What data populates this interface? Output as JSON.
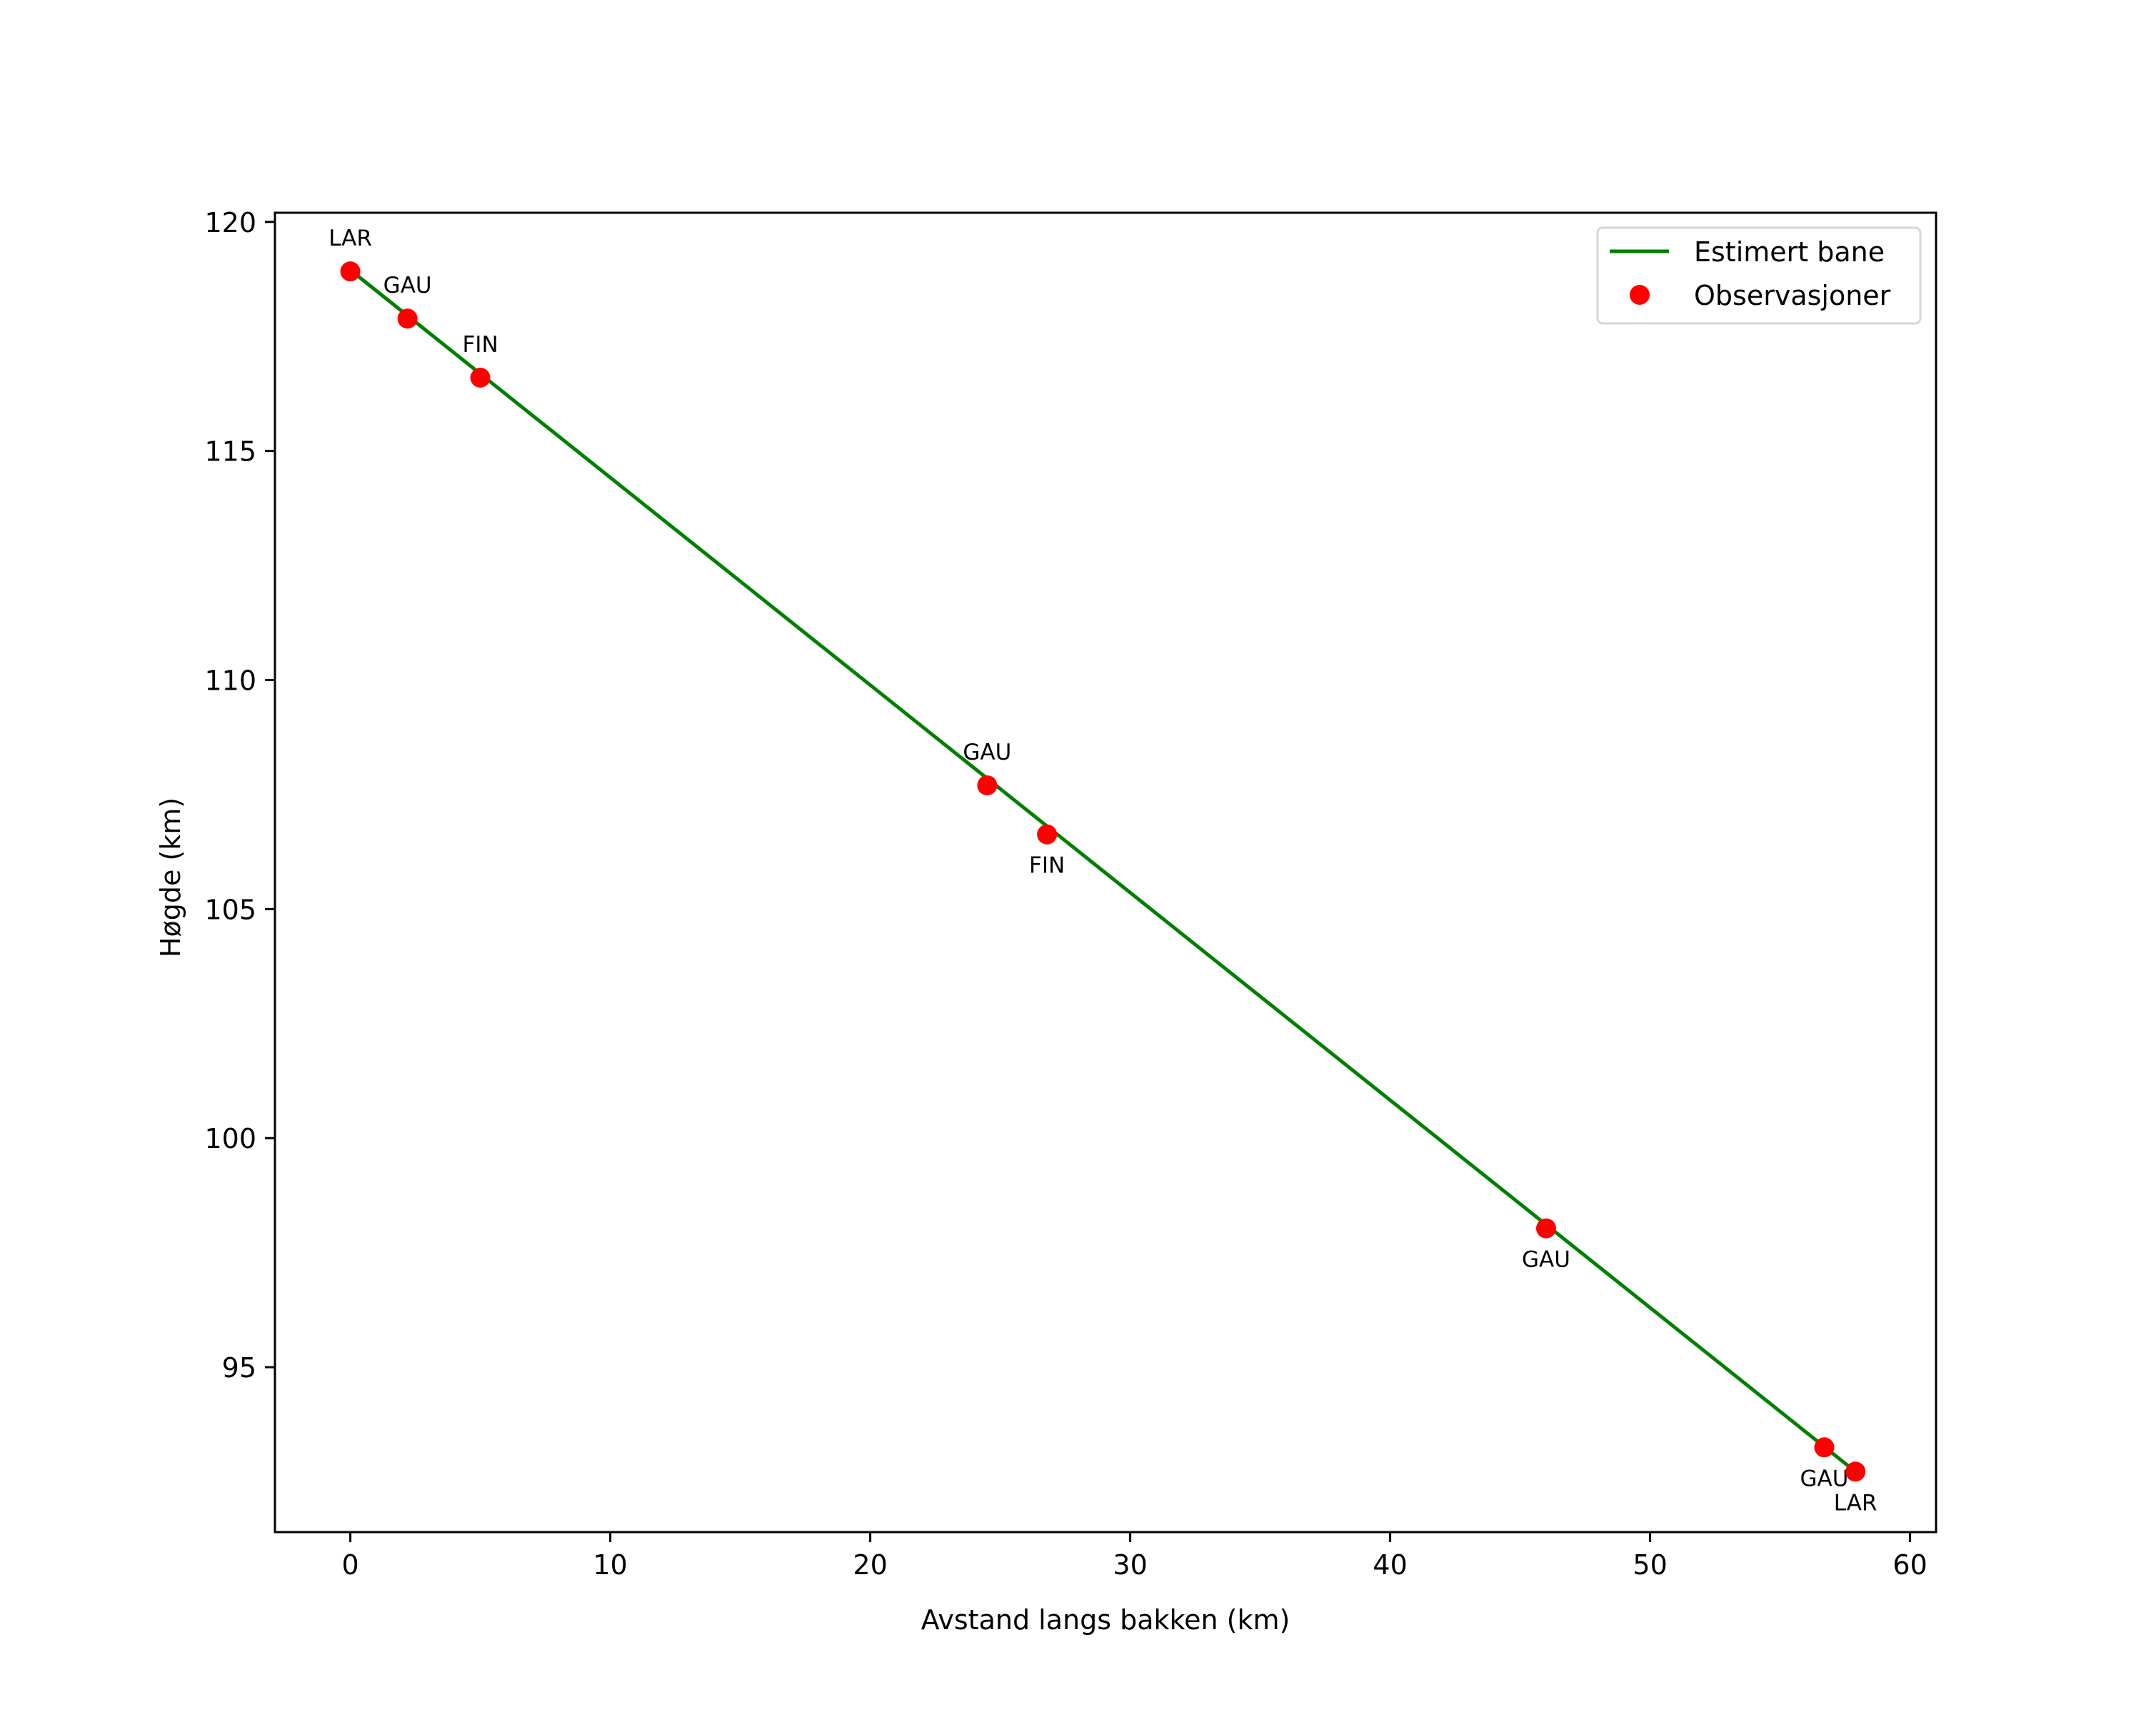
{
  "chart_data": {
    "type": "line",
    "title": "",
    "xlabel": "Avstand langs bakken (km)",
    "ylabel": "Høgde (km)",
    "xlim": [
      -2.9,
      61.0
    ],
    "ylim": [
      91.4,
      120.2
    ],
    "x_ticks": [
      0,
      10,
      20,
      30,
      40,
      50,
      60
    ],
    "y_ticks": [
      95,
      100,
      105,
      110,
      115,
      120
    ],
    "grid": false,
    "legend_position": "upper right",
    "series": [
      {
        "name": "Estimert bane",
        "kind": "line",
        "color": "#008000",
        "x": [
          0.0,
          57.9
        ],
        "y": [
          118.95,
          92.72
        ]
      },
      {
        "name": "Observasjoner",
        "kind": "scatter",
        "color": "#ff0000",
        "points": [
          {
            "x": 0.0,
            "y": 118.92,
            "label": "LAR",
            "label_pos": "above"
          },
          {
            "x": 2.2,
            "y": 117.89,
            "label": "GAU",
            "label_pos": "above"
          },
          {
            "x": 5.0,
            "y": 116.6,
            "label": "FIN",
            "label_pos": "above"
          },
          {
            "x": 24.5,
            "y": 107.7,
            "label": "GAU",
            "label_pos": "above"
          },
          {
            "x": 26.8,
            "y": 106.63,
            "label": "FIN",
            "label_pos": "below"
          },
          {
            "x": 46.0,
            "y": 98.03,
            "label": "GAU",
            "label_pos": "below"
          },
          {
            "x": 56.7,
            "y": 93.25,
            "label": "GAU",
            "label_pos": "below"
          },
          {
            "x": 57.9,
            "y": 92.72,
            "label": "LAR",
            "label_pos": "below"
          }
        ]
      }
    ]
  }
}
